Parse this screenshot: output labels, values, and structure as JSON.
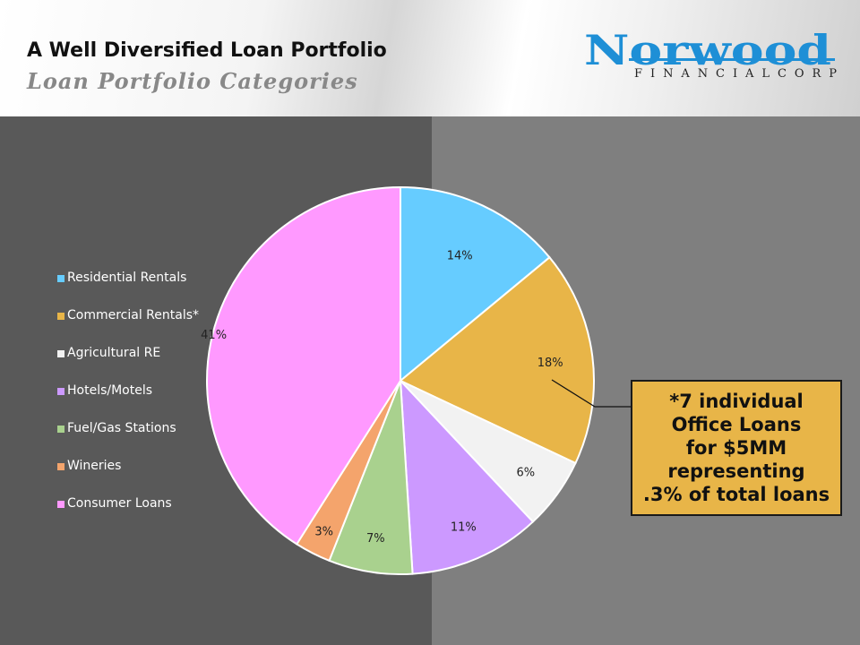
{
  "header": {
    "title": "A Well Diversified Loan Portfolio",
    "subtitle": "Loan Portfolio Categories"
  },
  "logo": {
    "name": "Norwood",
    "tagline": "FINANCIAL CORP",
    "color": "#1e8fd6"
  },
  "callout": {
    "text": "*7 individual\nOffice Loans\nfor $5MM\nrepresenting\n.3% of total loans",
    "color": "#e8b548"
  },
  "chart_data": {
    "type": "pie",
    "title": "",
    "categories": [
      "Residential Rentals",
      "Commercial Rentals*",
      "Agricultural RE",
      "Hotels/Motels",
      "Fuel/Gas Stations",
      "Wineries",
      "Consumer Loans"
    ],
    "values": [
      14,
      18,
      6,
      11,
      7,
      3,
      41
    ],
    "labels": [
      "14%",
      "18%",
      "6%",
      "11%",
      "7%",
      "3%",
      "41%"
    ],
    "colors": [
      "#66ccff",
      "#e8b548",
      "#f2f2f2",
      "#cc99ff",
      "#a9d18e",
      "#f4a46c",
      "#ff99ff"
    ],
    "legend_position": "left",
    "start_angle": "12 o'clock",
    "direction": "clockwise"
  }
}
